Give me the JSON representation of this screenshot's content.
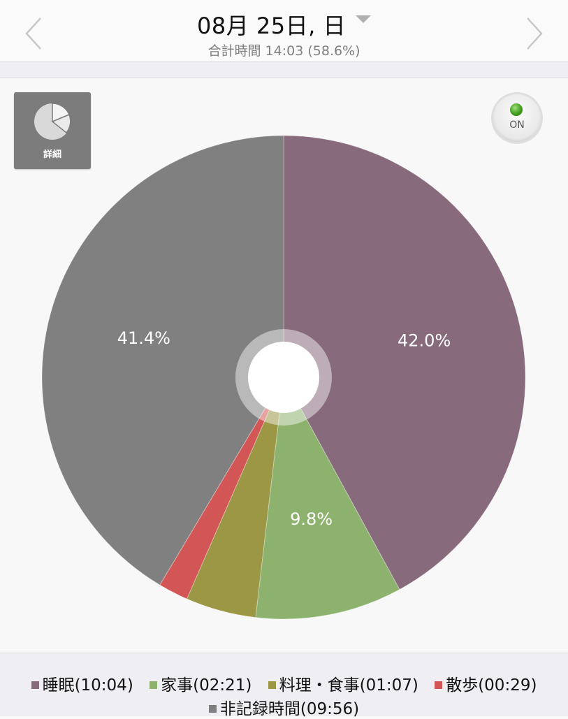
{
  "header": {
    "date": "08月 25日, 日",
    "subtitle": "合計時間 14:03 (58.6%)"
  },
  "detail_button": {
    "label": "詳細"
  },
  "toggle": {
    "label": "ON"
  },
  "colors": {
    "sleep": "#876a7b",
    "housework": "#8db26e",
    "cooking": "#9c9744",
    "walk": "#d35656",
    "unrecorded": "#808080"
  },
  "legend": {
    "items": [
      "睡眠(10:04)",
      "家事(02:21)",
      "料理・食事(01:07)",
      "散歩(00:29)",
      "非記録時間(09:56)"
    ]
  },
  "chart_data": {
    "type": "pie",
    "title": "",
    "slices": [
      {
        "label": "睡眠(10:04)",
        "value": 42.0,
        "color": "#876a7b",
        "data_label": "42.0%"
      },
      {
        "label": "家事(02:21)",
        "value": 9.8,
        "color": "#8db26e",
        "data_label": "9.8%"
      },
      {
        "label": "料理・食事(01:07)",
        "value": 4.7,
        "color": "#9c9744",
        "data_label": ""
      },
      {
        "label": "散歩(00:29)",
        "value": 2.0,
        "color": "#d35656",
        "data_label": ""
      },
      {
        "label": "非記録時間(09:56)",
        "value": 41.4,
        "color": "#808080",
        "data_label": "41.4%"
      }
    ],
    "start_angle_deg": 0,
    "direction": "clockwise",
    "legend_position": "bottom"
  }
}
